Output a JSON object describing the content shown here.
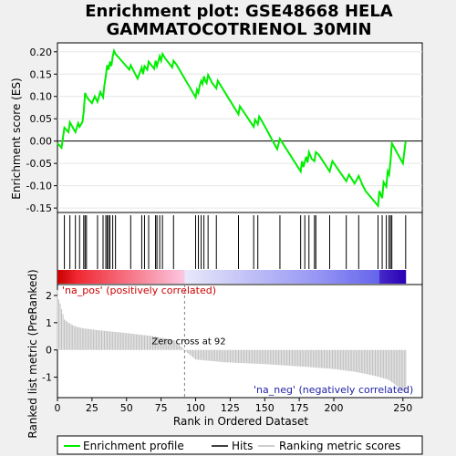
{
  "title_line1": "Enrichment plot: GSE48668 HELA",
  "title_line2": "GAMMATOCOTRIENOL 30MIN",
  "colors": {
    "es_line": "#00ee00",
    "hits": "#000000",
    "metric_bars": "#bebebe",
    "pos_label": "#cc0000",
    "neg_label": "#2222aa",
    "background": "#f0f0f0",
    "panel": "#ffffff"
  },
  "chart_data": [
    {
      "type": "line",
      "panel": "enrichment-score",
      "ylabel": "Enrichment score (ES)",
      "ylim": [
        -0.16,
        0.22
      ],
      "yticks": [
        -0.15,
        -0.1,
        -0.05,
        0.0,
        0.05,
        0.1,
        0.15,
        0.2
      ],
      "ytick_labels": [
        "-0.15",
        "-0.10",
        "-0.05",
        "0.00",
        "0.05",
        "0.10",
        "0.15",
        "0.20"
      ],
      "xlim": [
        0,
        264
      ],
      "series": [
        {
          "name": "Enrichment profile",
          "x": [
            0,
            3,
            5,
            8,
            9,
            13,
            15,
            16,
            18,
            19,
            20,
            21,
            23,
            25,
            27,
            29,
            31,
            33,
            34,
            35,
            36,
            37,
            38,
            39,
            40,
            41,
            42,
            47,
            52,
            53,
            58,
            61,
            62,
            63,
            65,
            66,
            68,
            70,
            71,
            72,
            74,
            75,
            76,
            78,
            83,
            84,
            86,
            100,
            101,
            102,
            103,
            104,
            105,
            106,
            107,
            108,
            109,
            112,
            115,
            116,
            131,
            132,
            142,
            143,
            145,
            146,
            148,
            159,
            161,
            176,
            177,
            178,
            180,
            181,
            182,
            184,
            186,
            187,
            189,
            197,
            199,
            209,
            211,
            215,
            218,
            221,
            223,
            232,
            233,
            235,
            236,
            238,
            239,
            240,
            241,
            242,
            250,
            252
          ],
          "y": [
            -0.005,
            -0.015,
            0.03,
            0.02,
            0.042,
            0.02,
            0.04,
            0.032,
            0.042,
            0.065,
            0.108,
            0.1,
            0.092,
            0.085,
            0.1,
            0.088,
            0.11,
            0.098,
            0.125,
            0.145,
            0.17,
            0.16,
            0.178,
            0.168,
            0.19,
            0.202,
            0.195,
            0.178,
            0.16,
            0.17,
            0.14,
            0.165,
            0.15,
            0.168,
            0.16,
            0.178,
            0.17,
            0.162,
            0.18,
            0.168,
            0.19,
            0.18,
            0.195,
            0.185,
            0.165,
            0.18,
            0.172,
            0.098,
            0.115,
            0.108,
            0.125,
            0.135,
            0.128,
            0.145,
            0.135,
            0.13,
            0.148,
            0.13,
            0.118,
            0.135,
            0.06,
            0.078,
            0.032,
            0.048,
            0.038,
            0.055,
            0.045,
            -0.018,
            0.005,
            -0.068,
            -0.045,
            -0.058,
            -0.035,
            -0.048,
            -0.025,
            -0.04,
            -0.045,
            -0.025,
            -0.03,
            -0.068,
            -0.045,
            -0.09,
            -0.075,
            -0.095,
            -0.078,
            -0.1,
            -0.112,
            -0.145,
            -0.112,
            -0.128,
            -0.092,
            -0.102,
            -0.068,
            -0.075,
            -0.045,
            -0.005,
            -0.05,
            0.0
          ]
        }
      ]
    },
    {
      "type": "scatter",
      "panel": "hits",
      "series": [
        {
          "name": "Hits",
          "x": [
            5,
            9,
            13,
            16,
            19,
            20,
            21,
            29,
            33,
            35,
            36,
            37,
            38,
            40,
            42,
            53,
            61,
            63,
            66,
            71,
            72,
            74,
            76,
            84,
            100,
            102,
            104,
            106,
            109,
            115,
            131,
            142,
            145,
            161,
            176,
            179,
            182,
            186,
            187,
            197,
            209,
            218,
            232,
            235,
            238,
            240,
            241,
            242,
            252
          ]
        }
      ]
    },
    {
      "type": "bar",
      "panel": "ranked-metric",
      "ylabel": "Ranked list metric (PreRanked)",
      "xlabel": "Rank in Ordered Dataset",
      "ylim": [
        -1.75,
        2.4
      ],
      "yticks": [
        -1,
        0,
        1,
        2
      ],
      "ytick_labels": [
        "-1",
        "0",
        "1",
        "2"
      ],
      "xlim": [
        0,
        264
      ],
      "xticks": [
        0,
        25,
        50,
        75,
        100,
        125,
        150,
        175,
        200,
        250
      ],
      "xtick_labels": [
        "0",
        "25",
        "50",
        "75",
        "100",
        "125",
        "150",
        "175",
        "200",
        "250"
      ],
      "x_max": 252,
      "zero_cross": 92,
      "metric_profile": {
        "x": [
          0,
          1,
          2,
          3,
          5,
          8,
          12,
          18,
          30,
          50,
          70,
          85,
          91,
          92,
          100,
          120,
          150,
          180,
          200,
          215,
          225,
          232,
          240,
          245,
          249,
          252
        ],
        "y": [
          2.2,
          1.85,
          1.7,
          1.5,
          1.12,
          1.0,
          0.88,
          0.8,
          0.72,
          0.62,
          0.5,
          0.35,
          0.05,
          -0.02,
          -0.35,
          -0.45,
          -0.52,
          -0.62,
          -0.7,
          -0.8,
          -0.9,
          -0.98,
          -1.1,
          -1.3,
          -1.48,
          -1.55
        ]
      }
    }
  ],
  "labels": {
    "pos": "'na_pos' (positively correlated)",
    "neg": "'na_neg' (negatively correlated)",
    "zero_cross": "Zero cross at 92"
  },
  "legend": {
    "items": [
      {
        "label": "Enrichment profile"
      },
      {
        "label": "Hits"
      },
      {
        "label": "Ranking metric scores"
      }
    ]
  }
}
